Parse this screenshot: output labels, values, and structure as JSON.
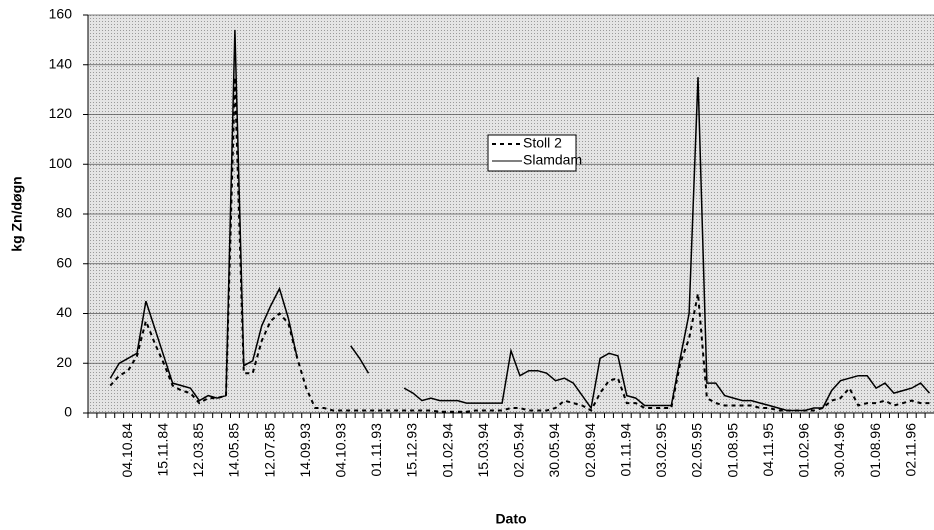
{
  "chart_data": {
    "type": "line",
    "x_label": "Dato",
    "y_label": "kg Zn/døgn",
    "categories": [
      null,
      null,
      null,
      null,
      "04.10.84",
      null,
      null,
      null,
      "15.11.84",
      null,
      null,
      null,
      "12.03.85",
      null,
      null,
      null,
      "14.05.85",
      null,
      null,
      null,
      "12.07.85",
      null,
      null,
      null,
      "14.09.93",
      null,
      null,
      null,
      "04.10.93",
      null,
      null,
      null,
      "01.11.93",
      null,
      null,
      null,
      "15.12.93",
      null,
      null,
      null,
      "01.02.94",
      null,
      null,
      null,
      "15.03.94",
      null,
      null,
      null,
      "02.05.94",
      null,
      null,
      null,
      "30.05.94",
      null,
      null,
      null,
      "02.08.94",
      null,
      null,
      null,
      "01.11.94",
      null,
      null,
      null,
      "03.02.95",
      null,
      null,
      null,
      "02.05.95",
      null,
      null,
      null,
      "01.08.95",
      null,
      null,
      null,
      "04.11.95",
      null,
      null,
      null,
      "01.02.96",
      null,
      null,
      null,
      "30.04.96",
      null,
      null,
      null,
      "01.08.96",
      null,
      null,
      null,
      "02.11.96",
      null,
      null
    ],
    "series": [
      {
        "name": "Stoll 2",
        "color": "#000000",
        "dash": true,
        "values": [
          null,
          null,
          11,
          15,
          17,
          23,
          37,
          28,
          20,
          11,
          9,
          8,
          4,
          6,
          6,
          7,
          135,
          16,
          16,
          29,
          37,
          40,
          36,
          22,
          10,
          2,
          2,
          1,
          1,
          1,
          1,
          1,
          1,
          1,
          1,
          1,
          1,
          1,
          1,
          0.5,
          0.5,
          0.5,
          0.5,
          1,
          1,
          1,
          1,
          2,
          2,
          1,
          1,
          1,
          2,
          5,
          4,
          3,
          1,
          8,
          13,
          14,
          4,
          4,
          2,
          2,
          2,
          2,
          20,
          30,
          48,
          6,
          4,
          3,
          3,
          3,
          3,
          2,
          2,
          1,
          1,
          1,
          1,
          1,
          2,
          5,
          6,
          10,
          3,
          4,
          4,
          5,
          3,
          4,
          5,
          4,
          4
        ]
      },
      {
        "name": "Slamdam",
        "color": "#000000",
        "dash": false,
        "values": [
          null,
          null,
          14,
          20,
          22,
          24,
          45,
          34,
          23,
          12,
          11,
          10,
          5,
          7,
          6,
          7,
          154,
          19,
          21,
          35,
          43,
          50,
          38,
          22,
          null,
          null,
          null,
          null,
          null,
          27,
          22,
          16,
          null,
          null,
          null,
          10,
          8,
          5,
          6,
          5,
          5,
          5,
          4,
          4,
          4,
          4,
          4,
          25,
          15,
          17,
          17,
          16,
          13,
          14,
          12,
          7,
          2,
          22,
          24,
          23,
          7,
          6,
          3,
          3,
          3,
          3,
          22,
          40,
          135,
          12,
          12,
          7,
          6,
          5,
          5,
          4,
          3,
          2,
          1,
          1,
          1,
          2,
          2,
          9,
          13,
          14,
          15,
          15,
          10,
          12,
          8,
          9,
          10,
          12,
          8
        ]
      }
    ],
    "ylim": [
      0,
      160
    ],
    "yticks": [
      0,
      20,
      40,
      60,
      80,
      100,
      120,
      140,
      160
    ],
    "grid": true,
    "legend": "center"
  }
}
